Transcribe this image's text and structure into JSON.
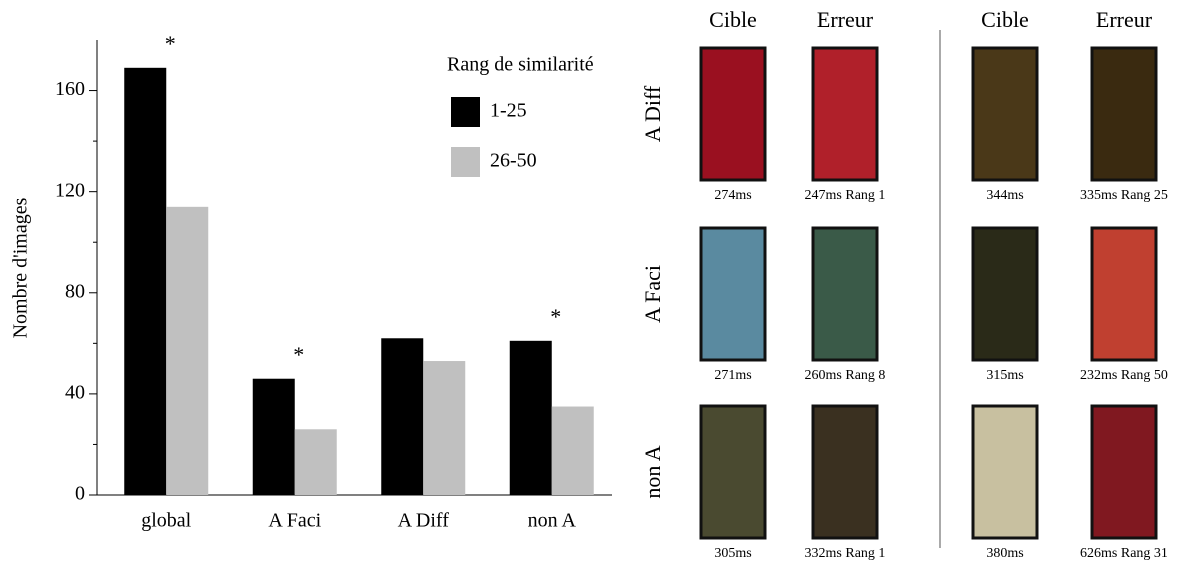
{
  "chart_data": {
    "type": "bar",
    "categories": [
      "global",
      "A Faci",
      "A Diff",
      "non A"
    ],
    "series": [
      {
        "name": "1-25",
        "color": "#000000",
        "values": [
          169,
          46,
          62,
          61
        ]
      },
      {
        "name": "26-50",
        "color": "#c0c0c0",
        "values": [
          114,
          26,
          53,
          35
        ]
      }
    ],
    "ylabel": "Nombre d'images",
    "legend_title": "Rang de similarité",
    "ylim": [
      0,
      180
    ],
    "yticks": [
      0,
      40,
      80,
      120,
      160
    ],
    "yminorticks": [
      20,
      60,
      100,
      140
    ],
    "annotations": [
      {
        "text": "*",
        "category": "global",
        "color": "#000000"
      },
      {
        "text": "*",
        "category": "A Faci",
        "color": "#a0a0a0"
      },
      {
        "text": "*",
        "category": "non A",
        "color": "#a0a0a0"
      }
    ]
  },
  "image_panel": {
    "headers": [
      "Cible",
      "Erreur",
      "Cible",
      "Erreur"
    ],
    "row_labels": [
      "A Diff",
      "A Faci",
      "non A"
    ],
    "captions": [
      [
        "274ms",
        "247ms Rang 1",
        "344ms",
        "335ms Rang  25"
      ],
      [
        "271ms",
        "260ms Rang  8",
        "315ms",
        "232ms Rang 50"
      ],
      [
        "305ms",
        "332ms Rang 1",
        "380ms",
        "626ms Rang  31"
      ]
    ]
  }
}
